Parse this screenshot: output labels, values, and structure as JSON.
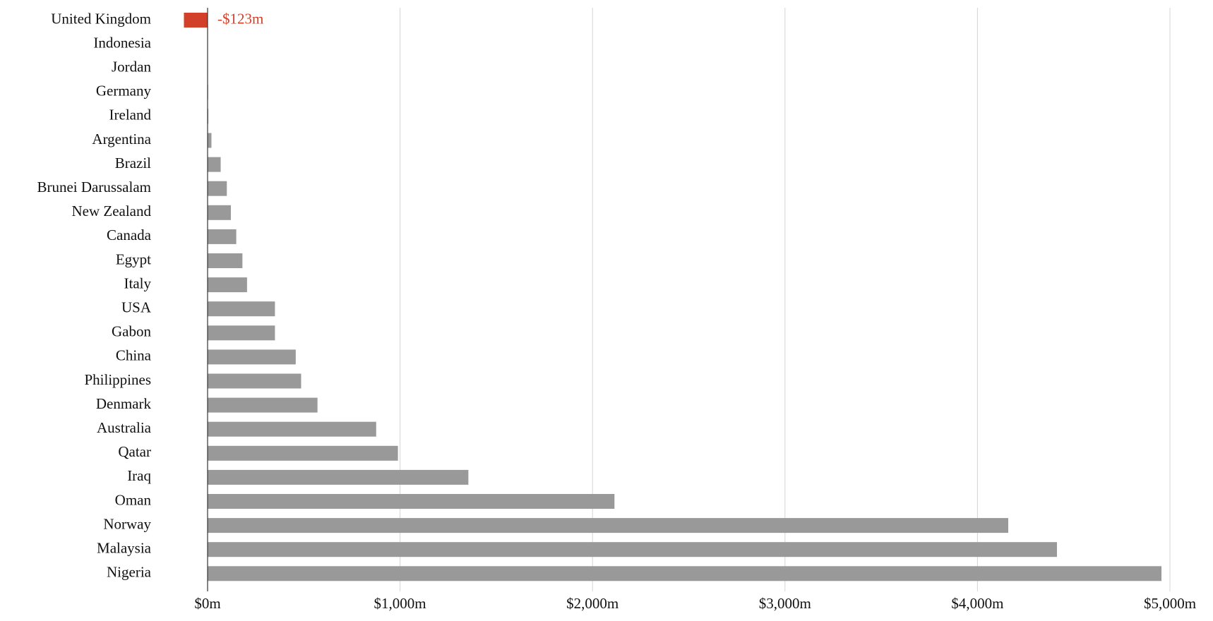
{
  "chart_data": {
    "type": "hbar",
    "categories": [
      "United Kingdom",
      "Indonesia",
      "Jordan",
      "Germany",
      "Ireland",
      "Argentina",
      "Brazil",
      "Brunei Darussalam",
      "New Zealand",
      "Canada",
      "Egypt",
      "Italy",
      "USA",
      "Gabon",
      "China",
      "Philippines",
      "Denmark",
      "Australia",
      "Qatar",
      "Iraq",
      "Oman",
      "Norway",
      "Malaysia",
      "Nigeria"
    ],
    "values": [
      -123,
      1,
      2,
      3,
      4,
      20,
      68,
      100,
      121,
      149,
      181,
      205,
      350,
      350,
      458,
      486,
      571,
      876,
      989,
      1355,
      2114,
      4160,
      4413,
      4956
    ],
    "value_labels": [
      "-$123m",
      null,
      null,
      null,
      null,
      null,
      null,
      null,
      null,
      null,
      null,
      null,
      null,
      null,
      null,
      null,
      null,
      null,
      null,
      null,
      null,
      null,
      null,
      null
    ],
    "color": "#999999",
    "negative_color": "#d2402a",
    "xlim": [
      0,
      5000
    ],
    "xticks": [
      {
        "value": 0,
        "label": "$0m"
      },
      {
        "value": 1000,
        "label": "$1,000m"
      },
      {
        "value": 2000,
        "label": "$2,000m"
      },
      {
        "value": 3000,
        "label": "$3,000m"
      },
      {
        "value": 4000,
        "label": "$4,000m"
      },
      {
        "value": 5000,
        "label": "$5,000m"
      }
    ],
    "grid": true
  }
}
